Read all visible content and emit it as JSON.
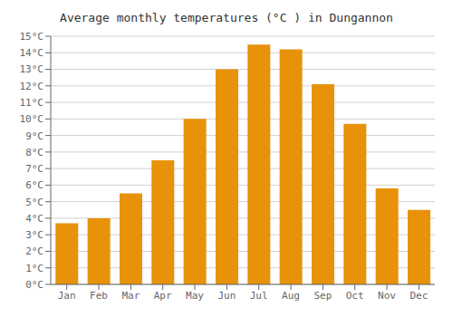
{
  "chart_data": {
    "type": "bar",
    "title": "Average monthly temperatures (°C ) in Dungannon",
    "categories": [
      "Jan",
      "Feb",
      "Mar",
      "Apr",
      "May",
      "Jun",
      "Jul",
      "Aug",
      "Sep",
      "Oct",
      "Nov",
      "Dec"
    ],
    "values": [
      3.7,
      4.0,
      5.5,
      7.5,
      10.0,
      13.0,
      14.5,
      14.2,
      12.1,
      9.7,
      5.8,
      4.5
    ],
    "color": "#E8920A",
    "ylim": [
      0,
      15
    ],
    "yticks": [
      {
        "value": 0,
        "label": "0°C"
      },
      {
        "value": 1,
        "label": "1°C"
      },
      {
        "value": 2,
        "label": "2°C"
      },
      {
        "value": 3,
        "label": "3°C"
      },
      {
        "value": 4,
        "label": "4°C"
      },
      {
        "value": 5,
        "label": "5°C"
      },
      {
        "value": 6,
        "label": "6°C"
      },
      {
        "value": 7,
        "label": "7°C"
      },
      {
        "value": 8,
        "label": "8°C"
      },
      {
        "value": 9,
        "label": "9°C"
      },
      {
        "value": 10,
        "label": "10°C"
      },
      {
        "value": 11,
        "label": "11°C"
      },
      {
        "value": 12,
        "label": "12°C"
      },
      {
        "value": 13,
        "label": "13°C"
      },
      {
        "value": 14,
        "label": "14°C"
      },
      {
        "value": 15,
        "label": "15°C"
      }
    ],
    "grid": true
  }
}
